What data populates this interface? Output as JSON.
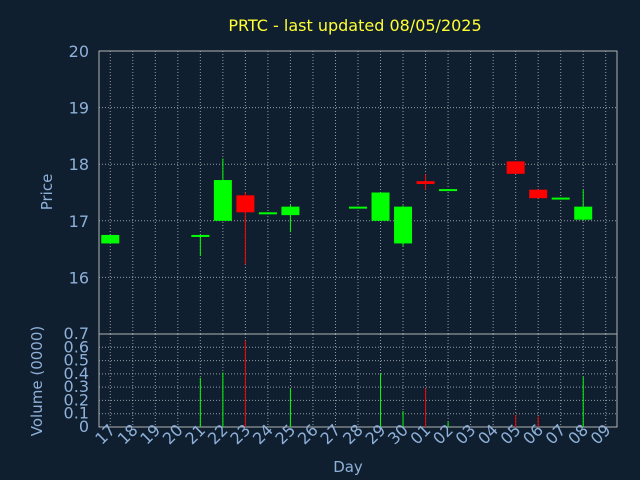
{
  "chart_data": {
    "type": "candlestick",
    "title": "PRTC - last updated 08/05/2025",
    "xlabel": "Day",
    "price_panel": {
      "ylabel": "Price",
      "ylim": [
        15.0,
        20.0
      ],
      "yticks": [
        "16",
        "17",
        "18",
        "19",
        "20"
      ],
      "grid": true
    },
    "volume_panel": {
      "ylabel": "Volume (0000)",
      "ylim": [
        0,
        0.7
      ],
      "yticks": [
        "0",
        "0.1",
        "0.2",
        "0.3",
        "0.4",
        "0.5",
        "0.6",
        "0.7"
      ],
      "grid": true
    },
    "x_ticks": [
      "17",
      "18",
      "19",
      "20",
      "21",
      "22",
      "23",
      "24",
      "25",
      "26",
      "27",
      "28",
      "29",
      "30",
      "01",
      "02",
      "03",
      "04",
      "05",
      "06",
      "07",
      "08",
      "09"
    ],
    "candles": [
      {
        "day": "17",
        "open": 16.6,
        "high": 16.75,
        "low": 16.6,
        "close": 16.75,
        "volume": 0.0,
        "direction": "up"
      },
      {
        "day": "21",
        "open": 16.75,
        "high": 16.75,
        "low": 16.38,
        "close": 16.75,
        "volume": 0.37,
        "direction": "up"
      },
      {
        "day": "22",
        "open": 17.0,
        "high": 18.1,
        "low": 17.0,
        "close": 17.72,
        "volume": 0.41,
        "direction": "up"
      },
      {
        "day": "23",
        "open": 17.45,
        "high": 17.5,
        "low": 16.23,
        "close": 17.15,
        "volume": 0.65,
        "direction": "down"
      },
      {
        "day": "24",
        "open": 17.13,
        "high": 17.15,
        "low": 17.13,
        "close": 17.15,
        "volume": 0.0,
        "direction": "up"
      },
      {
        "day": "25",
        "open": 17.1,
        "high": 17.28,
        "low": 16.8,
        "close": 17.25,
        "volume": 0.29,
        "direction": "up"
      },
      {
        "day": "28",
        "open": 17.23,
        "high": 17.25,
        "low": 17.23,
        "close": 17.25,
        "volume": 0.0,
        "direction": "up"
      },
      {
        "day": "29",
        "open": 17.0,
        "high": 17.5,
        "low": 17.0,
        "close": 17.5,
        "volume": 0.4,
        "direction": "up"
      },
      {
        "day": "30",
        "open": 16.6,
        "high": 17.27,
        "low": 16.55,
        "close": 17.25,
        "volume": 0.12,
        "direction": "up"
      },
      {
        "day": "01",
        "open": 17.7,
        "high": 17.82,
        "low": 17.55,
        "close": 17.65,
        "volume": 0.29,
        "direction": "down"
      },
      {
        "day": "02",
        "open": 17.54,
        "high": 17.56,
        "low": 17.54,
        "close": 17.56,
        "volume": 0.04,
        "direction": "up"
      },
      {
        "day": "05",
        "open": 18.05,
        "high": 18.05,
        "low": 17.83,
        "close": 17.83,
        "volume": 0.09,
        "direction": "down"
      },
      {
        "day": "06",
        "open": 17.55,
        "high": 17.55,
        "low": 17.4,
        "close": 17.4,
        "volume": 0.08,
        "direction": "down"
      },
      {
        "day": "07",
        "open": 17.39,
        "high": 17.41,
        "low": 17.39,
        "close": 17.41,
        "volume": 0.0,
        "direction": "up"
      },
      {
        "day": "08",
        "open": 17.02,
        "high": 17.55,
        "low": 17.0,
        "close": 17.25,
        "volume": 0.38,
        "direction": "up"
      }
    ],
    "colors": {
      "background": "#0f1f30",
      "up": "#00ff00",
      "down": "#ff0000",
      "title": "#ffff33",
      "axis_text": "#8fb0d8",
      "grid": "#d0d0d0",
      "frame": "#b0b0b0"
    }
  }
}
